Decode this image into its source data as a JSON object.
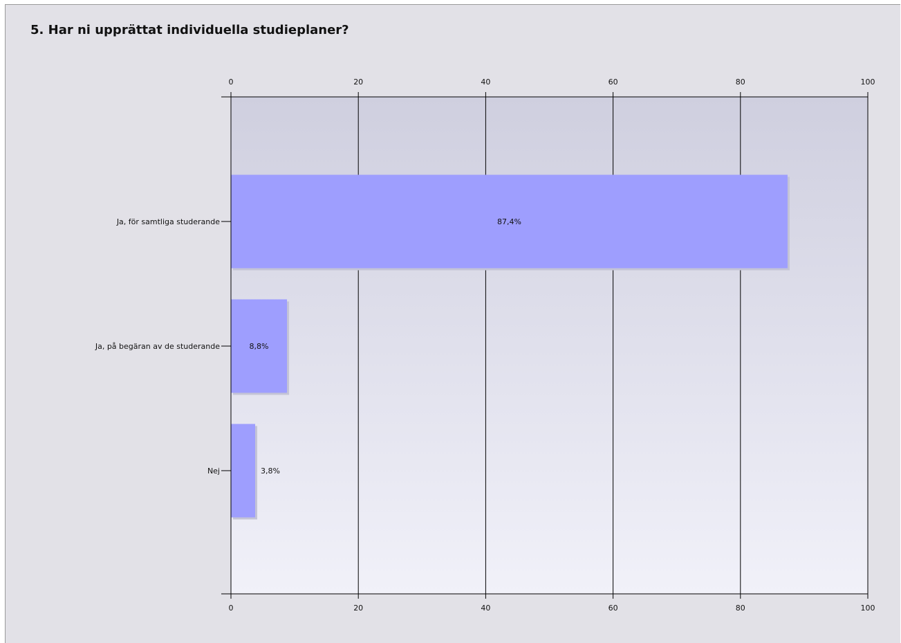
{
  "title": "5. Har ni upprättat individuella studieplaner?",
  "colors": {
    "page_background": "#e2e1e7",
    "plot_gradient_top": "#cfcfdf",
    "plot_gradient_bottom": "#f1f1f9",
    "bar_fill": "#9e9efe",
    "bar_shadow": "#c4c4d6",
    "axis": "#000000",
    "text": "#111111"
  },
  "chart_data": {
    "type": "bar",
    "orientation": "horizontal",
    "categories": [
      "Ja, för samtliga studerande",
      "Ja, på begäran av de studerande",
      "Nej"
    ],
    "values": [
      87.4,
      8.8,
      3.8
    ],
    "value_labels": [
      "87,4%",
      "8,8%",
      "3,8%"
    ],
    "xlim": [
      0,
      100
    ],
    "x_ticks": [
      0,
      20,
      40,
      60,
      80,
      100
    ],
    "x_tick_labels": [
      "0",
      "20",
      "40",
      "60",
      "80",
      "100"
    ],
    "x_axis_labels_top_and_bottom": true,
    "grid": "vertical",
    "xlabel": "",
    "ylabel": "",
    "legend": "none"
  }
}
